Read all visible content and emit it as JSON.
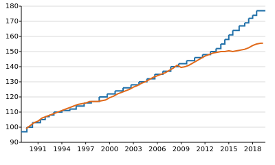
{
  "chart_data": {
    "type": "line",
    "xlim": [
      1988.9,
      2019.6
    ],
    "ylim": [
      90,
      180
    ],
    "xticks": [
      1991,
      1994,
      1997,
      2000,
      2003,
      2006,
      2009,
      2012,
      2015,
      2018
    ],
    "yticks": [
      90,
      100,
      110,
      120,
      130,
      140,
      150,
      160,
      170,
      180
    ],
    "grid": true,
    "series": [
      {
        "color": "#1f6fa8",
        "step": true,
        "x": [
          1988.9,
          1989.6,
          1990.3,
          1991.3,
          1991.9,
          1992.4,
          1993.0,
          1994.0,
          1995.0,
          1995.8,
          1996.8,
          1997.7,
          1998.7,
          1999.7,
          2000.7,
          2001.7,
          2002.7,
          2003.7,
          2004.7,
          2005.7,
          2006.7,
          2007.7,
          2008.7,
          2009.7,
          2010.7,
          2011.7,
          2012.7,
          2013.4,
          2014.0,
          2014.5,
          2015.0,
          2015.5,
          2016.3,
          2017.0,
          2017.5,
          2018.0,
          2018.5
        ],
        "values": [
          97,
          100,
          103,
          105,
          107,
          108,
          110,
          111,
          112,
          114,
          116,
          117,
          120,
          122,
          124,
          126,
          128,
          130,
          132,
          135,
          137,
          140,
          142,
          144,
          146,
          148,
          150,
          152,
          155,
          158,
          161,
          164,
          167,
          169,
          172,
          174,
          177
        ]
      },
      {
        "color": "#e0691a",
        "x": [
          1989.5,
          1990,
          1990.5,
          1991,
          1991.5,
          1992,
          1992.5,
          1993,
          1993.5,
          1994,
          1994.5,
          1995,
          1995.5,
          1996,
          1996.5,
          1997,
          1997.5,
          1998,
          1998.5,
          1999,
          1999.5,
          2000,
          2000.5,
          2001,
          2001.5,
          2002,
          2002.5,
          2003,
          2003.5,
          2004,
          2004.5,
          2005,
          2005.5,
          2006,
          2006.5,
          2007,
          2007.5,
          2008,
          2008.5,
          2009,
          2009.5,
          2010,
          2010.5,
          2011,
          2011.5,
          2012,
          2012.5,
          2013,
          2013.5,
          2014,
          2014.5,
          2015,
          2015.5,
          2016,
          2016.5,
          2017,
          2017.5,
          2018,
          2018.5,
          2019,
          2019.3
        ],
        "values": [
          99,
          101,
          103,
          104,
          106,
          107,
          108,
          109,
          110,
          111,
          112,
          113,
          114,
          115,
          115.5,
          116,
          117,
          117,
          117,
          117.5,
          118,
          119.5,
          120.5,
          122,
          123,
          124,
          125,
          126.5,
          127.5,
          129,
          130,
          131.5,
          133,
          134,
          135,
          136,
          137.5,
          139,
          141,
          139.5,
          140,
          141,
          142.5,
          144,
          145.5,
          147,
          148,
          149,
          149.5,
          150,
          150,
          150.5,
          150,
          150.5,
          151,
          151.5,
          152.5,
          154,
          155,
          155.5,
          155.5
        ]
      }
    ]
  }
}
